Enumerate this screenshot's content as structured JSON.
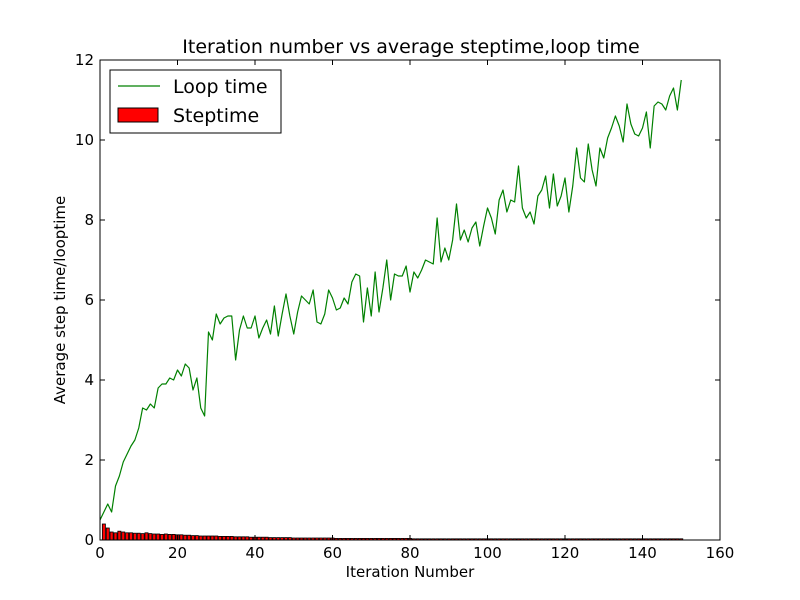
{
  "chart_data": {
    "type": "line",
    "title": "Iteration number vs average steptime,loop time",
    "xlabel": "Iteration Number",
    "ylabel": "Average step time/looptime",
    "xlim": [
      0,
      160
    ],
    "ylim": [
      0,
      12
    ],
    "xticks": [
      "0",
      "20",
      "40",
      "60",
      "80",
      "100",
      "120",
      "140",
      "160"
    ],
    "yticks": [
      "0",
      "2",
      "4",
      "6",
      "8",
      "10",
      "12"
    ],
    "grid": false,
    "legend_position": "top-left",
    "series": [
      {
        "name": "Loop time",
        "kind": "line",
        "color": "#008000",
        "x": [
          0,
          1,
          2,
          3,
          4,
          5,
          6,
          7,
          8,
          9,
          10,
          11,
          12,
          13,
          14,
          15,
          16,
          17,
          18,
          19,
          20,
          21,
          22,
          23,
          24,
          25,
          26,
          27,
          28,
          29,
          30,
          31,
          32,
          33,
          34,
          35,
          36,
          37,
          38,
          39,
          40,
          41,
          42,
          43,
          44,
          45,
          46,
          47,
          48,
          49,
          50,
          51,
          52,
          53,
          54,
          55,
          56,
          57,
          58,
          59,
          60,
          61,
          62,
          63,
          64,
          65,
          66,
          67,
          68,
          69,
          70,
          71,
          72,
          73,
          74,
          75,
          76,
          77,
          78,
          79,
          80,
          81,
          82,
          83,
          84,
          85,
          86,
          87,
          88,
          89,
          90,
          91,
          92,
          93,
          94,
          95,
          96,
          97,
          98,
          99,
          100,
          101,
          102,
          103,
          104,
          105,
          106,
          107,
          108,
          109,
          110,
          111,
          112,
          113,
          114,
          115,
          116,
          117,
          118,
          119,
          120,
          121,
          122,
          123,
          124,
          125,
          126,
          127,
          128,
          129,
          130,
          131,
          132,
          133,
          134,
          135,
          136,
          137,
          138,
          139,
          140,
          141,
          142,
          143,
          144,
          145,
          146,
          147,
          148,
          149,
          150
        ],
        "values": [
          0.5,
          0.7,
          0.9,
          0.7,
          1.35,
          1.6,
          1.95,
          2.15,
          2.35,
          2.5,
          2.8,
          3.3,
          3.25,
          3.4,
          3.3,
          3.8,
          3.9,
          3.9,
          4.05,
          4.0,
          4.25,
          4.1,
          4.4,
          4.3,
          3.75,
          4.05,
          3.3,
          3.1,
          5.2,
          5.0,
          5.65,
          5.4,
          5.55,
          5.6,
          5.6,
          4.5,
          5.25,
          5.6,
          5.3,
          5.3,
          5.6,
          5.05,
          5.3,
          5.5,
          5.15,
          5.85,
          5.1,
          5.65,
          6.15,
          5.6,
          5.15,
          5.7,
          6.1,
          6.0,
          5.9,
          6.25,
          5.45,
          5.4,
          5.65,
          6.25,
          6.05,
          5.75,
          5.8,
          6.05,
          5.9,
          6.45,
          6.65,
          6.6,
          5.45,
          6.3,
          5.6,
          6.7,
          5.7,
          6.3,
          7.0,
          6.0,
          6.65,
          6.6,
          6.6,
          6.85,
          6.2,
          6.7,
          6.55,
          6.75,
          7.0,
          6.95,
          6.9,
          8.05,
          6.95,
          7.3,
          7.0,
          7.5,
          8.4,
          7.5,
          7.75,
          7.45,
          7.8,
          7.95,
          7.35,
          7.85,
          8.3,
          8.05,
          7.65,
          8.5,
          8.75,
          8.2,
          8.5,
          8.45,
          9.35,
          8.3,
          8.05,
          8.2,
          7.9,
          8.6,
          8.75,
          9.1,
          8.3,
          9.15,
          8.35,
          8.6,
          9.05,
          8.2,
          8.85,
          9.8,
          9.05,
          8.95,
          9.9,
          9.25,
          8.85,
          9.8,
          9.55,
          10.05,
          10.3,
          10.6,
          10.35,
          9.95,
          10.9,
          10.4,
          10.15,
          10.1,
          10.3,
          10.7,
          9.8,
          10.85,
          10.95,
          10.9,
          10.75,
          11.1,
          11.3,
          10.75,
          11.5
        ]
      },
      {
        "name": "Steptime",
        "kind": "bar",
        "color": "#ff0000",
        "x": [
          1,
          2,
          3,
          4,
          5,
          6,
          7,
          8,
          9,
          10,
          11,
          12,
          13,
          14,
          15,
          16,
          17,
          18,
          19,
          20,
          21,
          22,
          23,
          24,
          25,
          26,
          27,
          28,
          29,
          30,
          31,
          32,
          33,
          34,
          35,
          36,
          37,
          38,
          39,
          40,
          41,
          42,
          43,
          44,
          45,
          46,
          47,
          48,
          49,
          50,
          51,
          52,
          53,
          54,
          55,
          56,
          57,
          58,
          59,
          60,
          61,
          62,
          63,
          64,
          65,
          66,
          67,
          68,
          69,
          70,
          71,
          72,
          73,
          74,
          75,
          76,
          77,
          78,
          79,
          80,
          81,
          82,
          83,
          84,
          85,
          86,
          87,
          88,
          89,
          90,
          91,
          92,
          93,
          94,
          95,
          96,
          97,
          98,
          99,
          100,
          101,
          102,
          103,
          104,
          105,
          106,
          107,
          108,
          109,
          110,
          111,
          112,
          113,
          114,
          115,
          116,
          117,
          118,
          119,
          120,
          121,
          122,
          123,
          124,
          125,
          126,
          127,
          128,
          129,
          130,
          131,
          132,
          133,
          134,
          135,
          136,
          137,
          138,
          139,
          140,
          141,
          142,
          143,
          144,
          145,
          146,
          147,
          148,
          149,
          150
        ],
        "values": [
          0.4,
          0.3,
          0.2,
          0.18,
          0.22,
          0.2,
          0.18,
          0.18,
          0.17,
          0.17,
          0.16,
          0.18,
          0.16,
          0.15,
          0.15,
          0.14,
          0.15,
          0.14,
          0.14,
          0.13,
          0.13,
          0.12,
          0.12,
          0.11,
          0.11,
          0.1,
          0.1,
          0.1,
          0.1,
          0.1,
          0.09,
          0.09,
          0.09,
          0.09,
          0.08,
          0.08,
          0.08,
          0.08,
          0.07,
          0.07,
          0.07,
          0.07,
          0.07,
          0.06,
          0.06,
          0.06,
          0.06,
          0.06,
          0.06,
          0.05,
          0.05,
          0.05,
          0.05,
          0.05,
          0.05,
          0.05,
          0.05,
          0.05,
          0.05,
          0.05,
          0.04,
          0.04,
          0.04,
          0.04,
          0.04,
          0.04,
          0.04,
          0.04,
          0.04,
          0.04,
          0.04,
          0.04,
          0.04,
          0.04,
          0.04,
          0.04,
          0.04,
          0.04,
          0.04,
          0.04,
          0.03,
          0.03,
          0.03,
          0.03,
          0.03,
          0.03,
          0.03,
          0.03,
          0.03,
          0.03,
          0.03,
          0.03,
          0.03,
          0.03,
          0.03,
          0.03,
          0.03,
          0.03,
          0.03,
          0.03,
          0.03,
          0.03,
          0.03,
          0.03,
          0.03,
          0.03,
          0.03,
          0.03,
          0.03,
          0.03,
          0.03,
          0.03,
          0.03,
          0.03,
          0.03,
          0.03,
          0.03,
          0.03,
          0.03,
          0.03,
          0.03,
          0.03,
          0.03,
          0.03,
          0.03,
          0.03,
          0.03,
          0.03,
          0.03,
          0.03,
          0.03,
          0.03,
          0.03,
          0.03,
          0.03,
          0.03,
          0.03,
          0.03,
          0.03,
          0.03,
          0.03,
          0.03,
          0.03,
          0.03,
          0.03,
          0.03,
          0.03,
          0.03,
          0.03,
          0.03
        ]
      }
    ]
  }
}
